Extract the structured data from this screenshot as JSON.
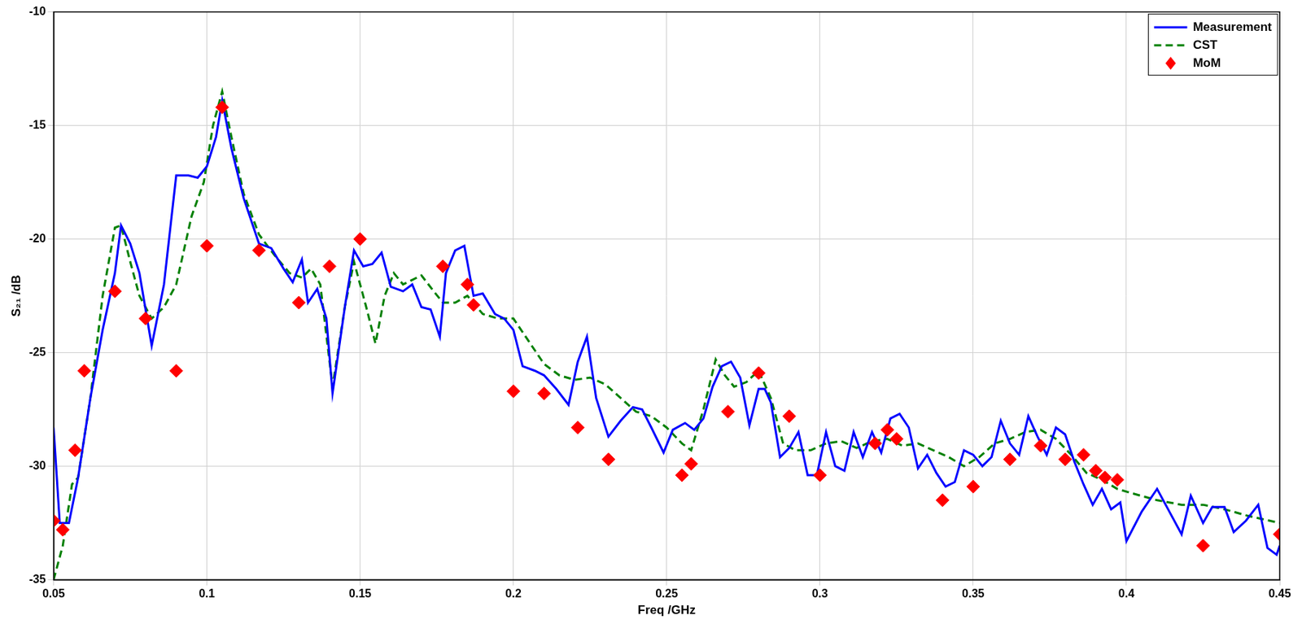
{
  "chart_data": {
    "type": "line",
    "x_label": "Freq /GHz",
    "y_label": "S₂₁ /dB",
    "xlim": [
      0.05,
      0.45
    ],
    "xticks": [
      0.05,
      0.1,
      0.15,
      0.2,
      0.25,
      0.3,
      0.35,
      0.4,
      0.45
    ],
    "ylim": [
      -35,
      -10
    ],
    "yticks": [
      -35,
      -30,
      -25,
      -20,
      -15,
      -10
    ],
    "grid": true,
    "legend": "upper right",
    "series": [
      {
        "name": "Measurement",
        "color": "#0000ff",
        "line_style": "solid",
        "x": [
          0.05,
          0.052,
          0.055,
          0.058,
          0.062,
          0.066,
          0.07,
          0.072,
          0.075,
          0.078,
          0.082,
          0.086,
          0.09,
          0.094,
          0.097,
          0.1,
          0.103,
          0.105,
          0.108,
          0.112,
          0.117,
          0.121,
          0.125,
          0.128,
          0.131,
          0.133,
          0.136,
          0.139,
          0.141,
          0.145,
          0.148,
          0.151,
          0.154,
          0.157,
          0.16,
          0.164,
          0.167,
          0.17,
          0.173,
          0.176,
          0.178,
          0.181,
          0.184,
          0.187,
          0.19,
          0.194,
          0.197,
          0.2,
          0.203,
          0.207,
          0.21,
          0.214,
          0.218,
          0.221,
          0.224,
          0.227,
          0.231,
          0.235,
          0.239,
          0.242,
          0.245,
          0.249,
          0.252,
          0.256,
          0.259,
          0.262,
          0.265,
          0.268,
          0.271,
          0.274,
          0.277,
          0.28,
          0.282,
          0.284,
          0.287,
          0.29,
          0.293,
          0.296,
          0.299,
          0.302,
          0.305,
          0.308,
          0.311,
          0.314,
          0.317,
          0.32,
          0.323,
          0.326,
          0.329,
          0.332,
          0.335,
          0.338,
          0.341,
          0.344,
          0.347,
          0.35,
          0.353,
          0.356,
          0.359,
          0.362,
          0.365,
          0.368,
          0.371,
          0.374,
          0.377,
          0.38,
          0.383,
          0.386,
          0.389,
          0.392,
          0.395,
          0.398,
          0.4,
          0.405,
          0.41,
          0.414,
          0.418,
          0.421,
          0.425,
          0.428,
          0.432,
          0.435,
          0.439,
          0.443,
          0.446,
          0.449,
          0.45
        ],
        "values": [
          -28.3,
          -32.5,
          -32.5,
          -30.5,
          -27,
          -24,
          -21.5,
          -19.4,
          -20.2,
          -21.5,
          -24.7,
          -22,
          -17.2,
          -17.2,
          -17.3,
          -16.8,
          -15.5,
          -13.9,
          -16,
          -18.2,
          -20.2,
          -20.4,
          -21.3,
          -21.9,
          -20.9,
          -22.8,
          -22.2,
          -23.5,
          -26.8,
          -23,
          -20.5,
          -21.2,
          -21.1,
          -20.6,
          -22.1,
          -22.3,
          -22,
          -23,
          -23.1,
          -24.3,
          -21.5,
          -20.5,
          -20.3,
          -22.5,
          -22.4,
          -23.3,
          -23.5,
          -24,
          -25.6,
          -25.8,
          -26,
          -26.6,
          -27.3,
          -25.4,
          -24.3,
          -27,
          -28.7,
          -28,
          -27.4,
          -27.5,
          -28.3,
          -29.4,
          -28.4,
          -28.1,
          -28.4,
          -27.9,
          -26.5,
          -25.6,
          -25.4,
          -26.1,
          -28.2,
          -26.6,
          -26.6,
          -27.2,
          -29.6,
          -29.2,
          -28.5,
          -30.4,
          -30.4,
          -28.5,
          -30,
          -30.2,
          -28.5,
          -29.6,
          -28.5,
          -29.4,
          -27.9,
          -27.7,
          -28.3,
          -30.1,
          -29.5,
          -30.3,
          -30.9,
          -30.7,
          -29.3,
          -29.5,
          -30,
          -29.6,
          -28,
          -29,
          -29.5,
          -27.8,
          -28.7,
          -29.5,
          -28.3,
          -28.6,
          -29.8,
          -30.8,
          -31.7,
          -31,
          -31.9,
          -31.6,
          -33.3,
          -32,
          -31,
          -32,
          -33,
          -31.3,
          -32.5,
          -31.8,
          -31.8,
          -32.9,
          -32.4,
          -31.7,
          -33.6,
          -33.9,
          -33.5
        ]
      },
      {
        "name": "CST",
        "color": "#008000",
        "line_style": "dashed",
        "x": [
          0.05,
          0.053,
          0.056,
          0.058,
          0.062,
          0.066,
          0.07,
          0.072,
          0.075,
          0.078,
          0.082,
          0.086,
          0.09,
          0.095,
          0.099,
          0.102,
          0.105,
          0.108,
          0.112,
          0.117,
          0.122,
          0.127,
          0.131,
          0.134,
          0.137,
          0.141,
          0.145,
          0.148,
          0.152,
          0.155,
          0.158,
          0.161,
          0.164,
          0.167,
          0.17,
          0.174,
          0.177,
          0.181,
          0.185,
          0.19,
          0.195,
          0.2,
          0.205,
          0.21,
          0.215,
          0.22,
          0.225,
          0.23,
          0.235,
          0.24,
          0.245,
          0.25,
          0.255,
          0.258,
          0.262,
          0.266,
          0.269,
          0.272,
          0.276,
          0.28,
          0.284,
          0.288,
          0.292,
          0.297,
          0.302,
          0.307,
          0.312,
          0.317,
          0.322,
          0.327,
          0.332,
          0.337,
          0.342,
          0.347,
          0.352,
          0.357,
          0.362,
          0.367,
          0.372,
          0.377,
          0.382,
          0.387,
          0.392,
          0.397,
          0.402,
          0.41,
          0.418,
          0.425,
          0.432,
          0.44,
          0.45
        ],
        "values": [
          -35,
          -33.5,
          -30.8,
          -30.5,
          -27,
          -22.5,
          -19.5,
          -19.4,
          -21,
          -22.5,
          -23.5,
          -23,
          -22,
          -19,
          -17.5,
          -15,
          -13.5,
          -15.5,
          -18,
          -19.8,
          -20.7,
          -21.5,
          -21.7,
          -21.3,
          -22,
          -26.5,
          -23,
          -21,
          -23,
          -24.6,
          -22.5,
          -21.5,
          -22,
          -21.8,
          -21.6,
          -22.3,
          -22.8,
          -22.8,
          -22.5,
          -23.3,
          -23.5,
          -23.5,
          -24.5,
          -25.5,
          -26,
          -26.2,
          -26.1,
          -26.4,
          -27,
          -27.6,
          -27.8,
          -28.3,
          -29,
          -29.3,
          -27.5,
          -25.3,
          -26,
          -26.5,
          -26.3,
          -25.8,
          -27,
          -29,
          -29.3,
          -29.3,
          -29,
          -28.9,
          -29.2,
          -28.9,
          -28.8,
          -29.1,
          -29,
          -29.3,
          -29.6,
          -30,
          -29.6,
          -29,
          -28.8,
          -28.5,
          -28.4,
          -28.8,
          -29.5,
          -30.3,
          -30.6,
          -31,
          -31.2,
          -31.5,
          -31.7,
          -31.7,
          -31.9,
          -32.2,
          -32.5
        ]
      },
      {
        "name": "MoM",
        "color": "#ff0000",
        "type": "scatter",
        "marker": "diamond",
        "x": [
          0.05,
          0.053,
          0.057,
          0.06,
          0.07,
          0.08,
          0.09,
          0.1,
          0.105,
          0.117,
          0.13,
          0.14,
          0.15,
          0.177,
          0.185,
          0.187,
          0.2,
          0.21,
          0.221,
          0.231,
          0.255,
          0.258,
          0.27,
          0.28,
          0.29,
          0.3,
          0.318,
          0.322,
          0.325,
          0.34,
          0.35,
          0.362,
          0.372,
          0.38,
          0.386,
          0.39,
          0.393,
          0.397,
          0.425,
          0.45
        ],
        "values": [
          -32.4,
          -32.8,
          -29.3,
          -25.8,
          -22.3,
          -23.5,
          -25.8,
          -20.3,
          -14.2,
          -20.5,
          -22.8,
          -21.2,
          -20,
          -21.2,
          -22,
          -22.9,
          -26.7,
          -26.8,
          -28.3,
          -29.7,
          -30.4,
          -29.9,
          -27.6,
          -25.9,
          -27.8,
          -30.4,
          -29,
          -28.4,
          -28.8,
          -31.5,
          -30.9,
          -29.7,
          -29.1,
          -29.7,
          -29.5,
          -30.2,
          -30.5,
          -30.6,
          -33.5,
          -33
        ]
      }
    ]
  }
}
